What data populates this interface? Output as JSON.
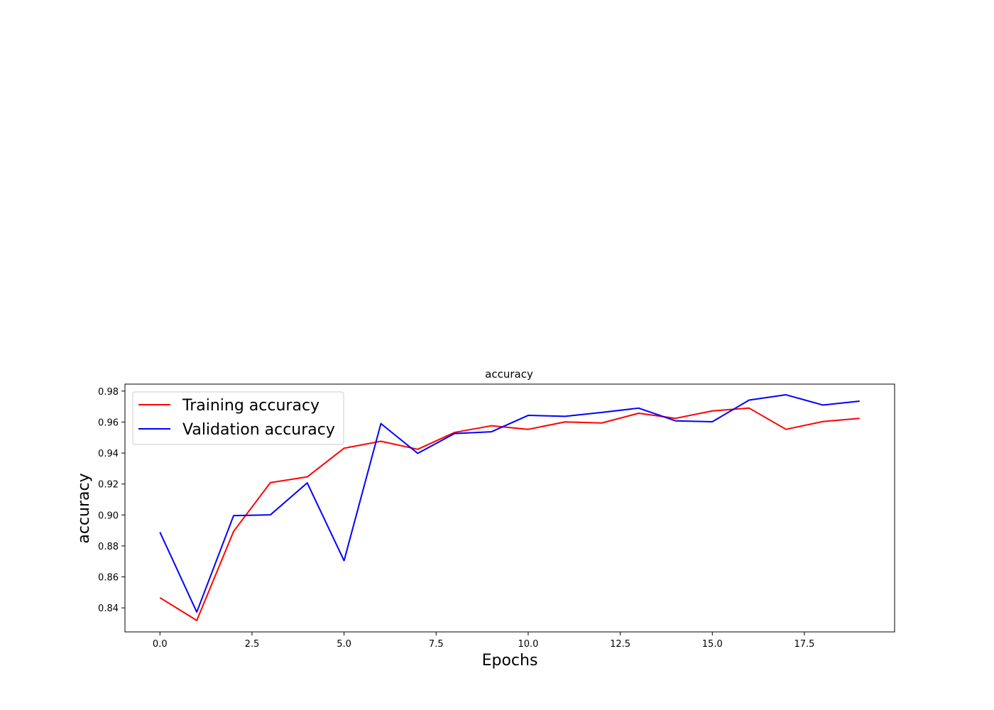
{
  "chart_data": {
    "type": "line",
    "title": "accuracy",
    "xlabel": "Epochs",
    "ylabel": "accuracy",
    "xlim": [
      -0.95,
      19.95
    ],
    "ylim": [
      0.8245,
      0.9845
    ],
    "x_ticks": [
      0.0,
      2.5,
      5.0,
      7.5,
      10.0,
      12.5,
      15.0,
      17.5
    ],
    "x_tick_labels": [
      "0.0",
      "2.5",
      "5.0",
      "7.5",
      "10.0",
      "12.5",
      "15.0",
      "17.5"
    ],
    "y_ticks": [
      0.84,
      0.86,
      0.88,
      0.9,
      0.92,
      0.94,
      0.96,
      0.98
    ],
    "y_tick_labels": [
      "0.84",
      "0.86",
      "0.88",
      "0.90",
      "0.92",
      "0.94",
      "0.96",
      "0.98"
    ],
    "grid": false,
    "legend_position": "upper-left",
    "x": [
      0,
      1,
      2,
      3,
      4,
      5,
      6,
      7,
      8,
      9,
      10,
      11,
      12,
      13,
      14,
      15,
      16,
      17,
      18,
      19
    ],
    "series": [
      {
        "name": "Training accuracy",
        "color": "#ff0000",
        "values": [
          0.8466,
          0.8319,
          0.8894,
          0.9209,
          0.9246,
          0.9431,
          0.9476,
          0.9424,
          0.9533,
          0.9576,
          0.9553,
          0.9601,
          0.9594,
          0.9657,
          0.9624,
          0.9672,
          0.969,
          0.9553,
          0.9603,
          0.9624
        ]
      },
      {
        "name": "Validation accuracy",
        "color": "#0000ff",
        "values": [
          0.8889,
          0.8373,
          0.8996,
          0.9001,
          0.9207,
          0.8705,
          0.959,
          0.9398,
          0.9526,
          0.9537,
          0.9643,
          0.9637,
          0.9662,
          0.969,
          0.9608,
          0.9602,
          0.9742,
          0.9776,
          0.971,
          0.9735
        ]
      }
    ]
  }
}
